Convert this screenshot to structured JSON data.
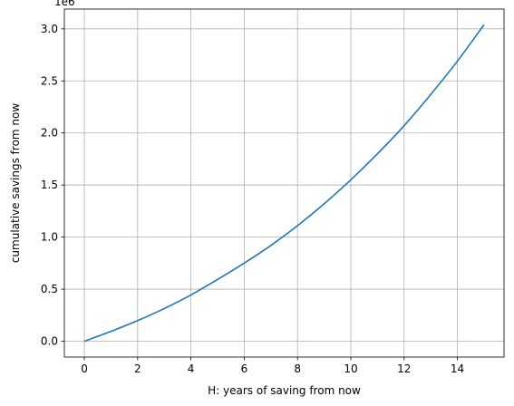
{
  "chart_data": {
    "type": "line",
    "title": "",
    "xlabel": "H: years of saving from now",
    "ylabel": "cumulative savings from now",
    "y_offset_text": "1e6",
    "xlim": [
      -0.75,
      15.75
    ],
    "ylim": [
      -0.152,
      3.19
    ],
    "x_ticks": [
      0,
      2,
      4,
      6,
      8,
      10,
      12,
      14
    ],
    "x_tick_labels": [
      "0",
      "2",
      "4",
      "6",
      "8",
      "10",
      "12",
      "14"
    ],
    "y_ticks": [
      0.0,
      0.5,
      1.0,
      1.5,
      2.0,
      2.5,
      3.0
    ],
    "y_tick_labels": [
      "0.0",
      "0.5",
      "1.0",
      "1.5",
      "2.0",
      "2.5",
      "3.0"
    ],
    "grid": true,
    "colors": {
      "line": "#1f77b4",
      "grid": "#b0b0b0",
      "axes": "#000000"
    },
    "series": [
      {
        "x": [
          0,
          1,
          2,
          3,
          4,
          5,
          6,
          7,
          8,
          9,
          10,
          11,
          12,
          13,
          14,
          15
        ],
        "y": [
          0.0,
          0.095,
          0.198,
          0.314,
          0.445,
          0.594,
          0.75,
          0.92,
          1.11,
          1.32,
          1.55,
          1.8,
          2.07,
          2.37,
          2.69,
          3.04
        ]
      }
    ]
  }
}
